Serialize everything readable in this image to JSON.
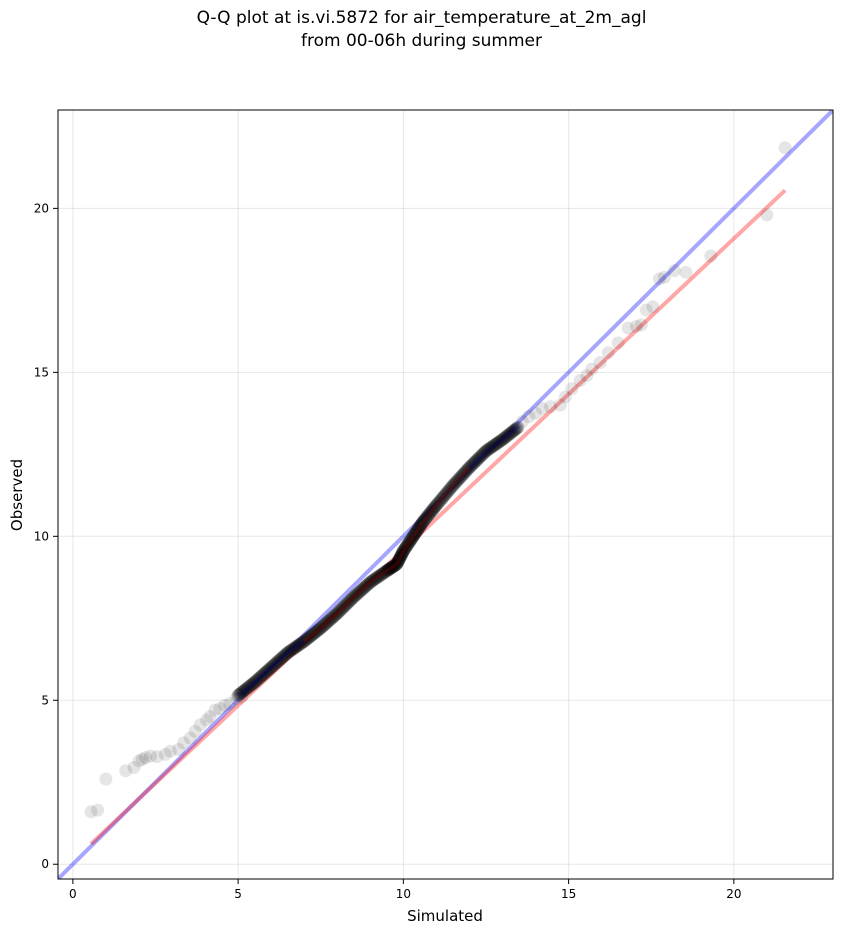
{
  "chart_data": {
    "type": "scatter",
    "title": "Q-Q plot at is.vi.5872 for air_temperature_at_2m_agl",
    "subtitle": "from 00-06h during summer",
    "xlabel": "Simulated",
    "ylabel": "Observed",
    "xlim": [
      -0.45,
      23.0
    ],
    "ylim": [
      -0.45,
      23.0
    ],
    "xticks": [
      0,
      5,
      10,
      15,
      20
    ],
    "yticks": [
      0,
      5,
      10,
      15,
      20
    ],
    "xtick_labels": [
      "0",
      "5",
      "10",
      "15",
      "20"
    ],
    "ytick_labels": [
      "0",
      "5",
      "10",
      "15",
      "20"
    ],
    "grid": true,
    "colors": {
      "points": "#000000",
      "identity_line": "#0000ff",
      "fit_line": "#ff0000"
    },
    "identity_line": {
      "x": [
        -0.45,
        23.0
      ],
      "y": [
        -0.45,
        23.0
      ]
    },
    "fit_line": {
      "x": [
        0.55,
        21.55
      ],
      "y": [
        0.62,
        20.55
      ]
    },
    "outlier_points": {
      "x": [
        0.55,
        0.75,
        1.0,
        1.6,
        1.85,
        2.0,
        2.1,
        2.2,
        2.35,
        2.55,
        2.8,
        2.95,
        3.2,
        3.35,
        3.55,
        3.7,
        3.85,
        4.05,
        4.15,
        4.3,
        4.45,
        4.6,
        4.75,
        4.95,
        5.1,
        13.6,
        13.8,
        14.0,
        14.2,
        14.45,
        14.75,
        14.9,
        15.1,
        15.35,
        15.55,
        15.7,
        15.95,
        16.2,
        16.5,
        16.8,
        17.05,
        17.2,
        17.35,
        17.55,
        17.75,
        17.9,
        18.2,
        18.55,
        19.3,
        21.0,
        21.55
      ],
      "y": [
        1.6,
        1.65,
        2.6,
        2.85,
        2.95,
        3.15,
        3.2,
        3.25,
        3.3,
        3.28,
        3.35,
        3.45,
        3.5,
        3.7,
        3.85,
        4.05,
        4.25,
        4.4,
        4.5,
        4.7,
        4.75,
        4.85,
        4.9,
        5.05,
        5.1,
        13.5,
        13.65,
        13.75,
        13.9,
        13.95,
        14.0,
        14.25,
        14.5,
        14.75,
        14.9,
        15.1,
        15.3,
        15.6,
        15.9,
        16.35,
        16.4,
        16.45,
        16.9,
        17.0,
        17.85,
        17.9,
        18.1,
        18.05,
        18.55,
        19.8,
        21.85
      ]
    },
    "dense_curve": {
      "x": [
        5.0,
        5.5,
        6.0,
        6.5,
        7.0,
        7.5,
        8.0,
        8.5,
        9.0,
        9.5,
        9.8,
        10.0,
        10.3,
        10.6,
        11.0,
        11.5,
        12.0,
        12.5,
        13.0,
        13.5
      ],
      "y": [
        5.15,
        5.55,
        6.0,
        6.45,
        6.8,
        7.2,
        7.65,
        8.15,
        8.6,
        8.95,
        9.15,
        9.55,
        10.0,
        10.45,
        10.95,
        11.55,
        12.1,
        12.6,
        12.95,
        13.35
      ]
    }
  }
}
